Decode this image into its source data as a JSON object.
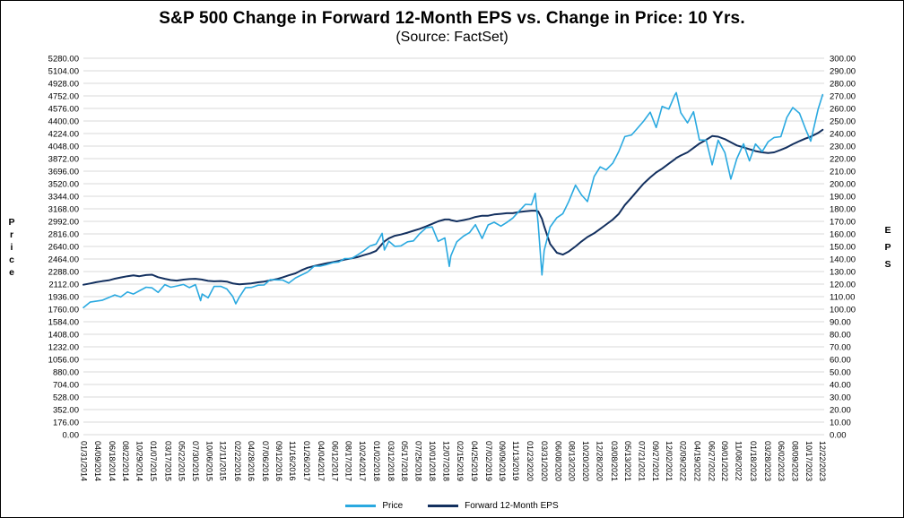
{
  "chart_data": {
    "type": "line",
    "title": "S&P 500 Change in Forward 12-Month EPS vs. Change in Price: 10 Yrs.",
    "subtitle": "(Source: FactSet)",
    "grid": "horizontal",
    "legend_position": "bottom",
    "x_domain": [
      2014.08,
      2024.0
    ],
    "y_left": {
      "title": "Price",
      "min": 0,
      "max": 5280,
      "step": 176,
      "tick_format": "0.00"
    },
    "y_right": {
      "title": "EPS",
      "min": 0,
      "max": 300,
      "step": 10,
      "tick_format": "0.00"
    },
    "series": [
      {
        "name": "Price",
        "color": "#2aa9e0",
        "axis": "left"
      },
      {
        "name": "Forward 12-Month EPS",
        "color": "#13305f",
        "axis": "right"
      }
    ],
    "x_labels": [
      "01/31/2014",
      "04/09/2014",
      "06/18/2014",
      "08/22/2014",
      "10/29/2014",
      "01/07/2015",
      "03/17/2015",
      "05/22/2015",
      "07/30/2015",
      "10/06/2015",
      "12/11/2015",
      "02/22/2016",
      "04/28/2016",
      "07/06/2016",
      "09/12/2016",
      "11/16/2016",
      "01/26/2017",
      "04/04/2017",
      "06/12/2017",
      "08/17/2017",
      "10/24/2017",
      "01/02/2018",
      "03/12/2018",
      "05/17/2018",
      "07/25/2018",
      "10/01/2018",
      "12/07/2018",
      "02/15/2019",
      "04/25/2019",
      "07/02/2019",
      "09/09/2019",
      "11/13/2019",
      "01/23/2020",
      "03/31/2020",
      "06/08/2020",
      "08/13/2020",
      "10/20/2020",
      "12/28/2020",
      "03/08/2021",
      "05/13/2021",
      "07/21/2021",
      "09/27/2021",
      "12/02/2021",
      "02/09/2022",
      "04/19/2022",
      "06/27/2022",
      "09/01/2022",
      "11/08/2022",
      "01/18/2023",
      "03/28/2023",
      "06/02/2023",
      "08/09/2023",
      "10/17/2023",
      "12/22/2023"
    ],
    "points_format": [
      "decimal_year",
      "price",
      "forward_12m_eps"
    ],
    "points": [
      [
        2014.08,
        1783,
        119.5
      ],
      [
        2014.17,
        1859,
        120.5
      ],
      [
        2014.25,
        1872,
        121.5
      ],
      [
        2014.33,
        1884,
        122.3
      ],
      [
        2014.42,
        1924,
        123.0
      ],
      [
        2014.5,
        1960,
        124.3
      ],
      [
        2014.58,
        1931,
        125.3
      ],
      [
        2014.67,
        2003,
        126.3
      ],
      [
        2014.75,
        1972,
        127.0
      ],
      [
        2014.83,
        2018,
        126.3
      ],
      [
        2014.92,
        2068,
        127.2
      ],
      [
        2015.0,
        2059,
        127.5
      ],
      [
        2015.08,
        1995,
        125.5
      ],
      [
        2015.17,
        2105,
        124.2
      ],
      [
        2015.25,
        2068,
        123.2
      ],
      [
        2015.33,
        2086,
        122.8
      ],
      [
        2015.42,
        2107,
        123.6
      ],
      [
        2015.5,
        2063,
        124.0
      ],
      [
        2015.58,
        2104,
        124.2
      ],
      [
        2015.65,
        1880,
        123.8
      ],
      [
        2015.67,
        1972,
        123.6
      ],
      [
        2015.75,
        1920,
        122.6
      ],
      [
        2015.83,
        2079,
        122.2
      ],
      [
        2015.92,
        2080,
        122.4
      ],
      [
        2016.0,
        2044,
        122.0
      ],
      [
        2016.08,
        1940,
        120.6
      ],
      [
        2016.12,
        1835,
        120.2
      ],
      [
        2016.17,
        1932,
        119.8
      ],
      [
        2016.25,
        2060,
        120.2
      ],
      [
        2016.33,
        2065,
        120.6
      ],
      [
        2016.42,
        2097,
        121.4
      ],
      [
        2016.5,
        2099,
        122.0
      ],
      [
        2016.58,
        2174,
        123.0
      ],
      [
        2016.67,
        2171,
        124.0
      ],
      [
        2016.75,
        2168,
        125.4
      ],
      [
        2016.83,
        2126,
        127.0
      ],
      [
        2016.92,
        2199,
        128.6
      ],
      [
        2017.0,
        2239,
        131.0
      ],
      [
        2017.08,
        2279,
        133.0
      ],
      [
        2017.17,
        2364,
        134.4
      ],
      [
        2017.25,
        2363,
        135.5
      ],
      [
        2017.33,
        2384,
        136.5
      ],
      [
        2017.42,
        2412,
        137.5
      ],
      [
        2017.5,
        2423,
        138.5
      ],
      [
        2017.58,
        2470,
        139.5
      ],
      [
        2017.67,
        2472,
        140.5
      ],
      [
        2017.75,
        2519,
        141.5
      ],
      [
        2017.83,
        2575,
        143.0
      ],
      [
        2017.92,
        2648,
        144.5
      ],
      [
        2018.0,
        2674,
        146.5
      ],
      [
        2018.08,
        2824,
        152.0
      ],
      [
        2018.11,
        2590,
        154.0
      ],
      [
        2018.17,
        2714,
        156.5
      ],
      [
        2018.25,
        2641,
        158.5
      ],
      [
        2018.33,
        2648,
        159.5
      ],
      [
        2018.42,
        2705,
        161.0
      ],
      [
        2018.5,
        2718,
        162.5
      ],
      [
        2018.58,
        2816,
        164.0
      ],
      [
        2018.67,
        2902,
        166.0
      ],
      [
        2018.75,
        2914,
        168.0
      ],
      [
        2018.83,
        2712,
        170.0
      ],
      [
        2018.92,
        2760,
        171.5
      ],
      [
        2018.98,
        2360,
        171.5
      ],
      [
        2019.0,
        2507,
        171.0
      ],
      [
        2019.08,
        2704,
        170.0
      ],
      [
        2019.17,
        2785,
        171.0
      ],
      [
        2019.25,
        2834,
        172.0
      ],
      [
        2019.33,
        2946,
        173.5
      ],
      [
        2019.42,
        2752,
        174.5
      ],
      [
        2019.5,
        2942,
        174.5
      ],
      [
        2019.58,
        2980,
        175.5
      ],
      [
        2019.67,
        2926,
        176.0
      ],
      [
        2019.75,
        2977,
        176.5
      ],
      [
        2019.83,
        3038,
        176.5
      ],
      [
        2019.92,
        3141,
        177.5
      ],
      [
        2020.0,
        3231,
        178.0
      ],
      [
        2020.08,
        3226,
        178.5
      ],
      [
        2020.13,
        3386,
        178.5
      ],
      [
        2020.17,
        2954,
        178.0
      ],
      [
        2020.22,
        2240,
        172.0
      ],
      [
        2020.25,
        2585,
        166.0
      ],
      [
        2020.33,
        2912,
        152.0
      ],
      [
        2020.42,
        3044,
        145.0
      ],
      [
        2020.5,
        3100,
        143.5
      ],
      [
        2020.58,
        3271,
        146.0
      ],
      [
        2020.67,
        3500,
        150.0
      ],
      [
        2020.75,
        3363,
        154.0
      ],
      [
        2020.83,
        3270,
        157.5
      ],
      [
        2020.92,
        3622,
        160.5
      ],
      [
        2021.0,
        3756,
        164.0
      ],
      [
        2021.08,
        3714,
        167.5
      ],
      [
        2021.17,
        3811,
        171.5
      ],
      [
        2021.25,
        3973,
        176.0
      ],
      [
        2021.33,
        4181,
        183.0
      ],
      [
        2021.42,
        4204,
        189.0
      ],
      [
        2021.5,
        4298,
        194.5
      ],
      [
        2021.58,
        4395,
        200.0
      ],
      [
        2021.67,
        4523,
        205.0
      ],
      [
        2021.75,
        4308,
        209.0
      ],
      [
        2021.83,
        4605,
        212.0
      ],
      [
        2021.92,
        4567,
        216.0
      ],
      [
        2022.0,
        4766,
        219.5
      ],
      [
        2022.02,
        4797,
        220.5
      ],
      [
        2022.08,
        4516,
        222.5
      ],
      [
        2022.17,
        4374,
        225.0
      ],
      [
        2022.25,
        4530,
        228.5
      ],
      [
        2022.33,
        4132,
        232.0
      ],
      [
        2022.42,
        4132,
        235.0
      ],
      [
        2022.5,
        3785,
        238.0
      ],
      [
        2022.58,
        4130,
        237.5
      ],
      [
        2022.67,
        3955,
        235.5
      ],
      [
        2022.75,
        3586,
        233.0
      ],
      [
        2022.83,
        3872,
        230.5
      ],
      [
        2022.92,
        4080,
        229.0
      ],
      [
        2023.0,
        3840,
        227.5
      ],
      [
        2023.08,
        4077,
        226.0
      ],
      [
        2023.17,
        3970,
        225.0
      ],
      [
        2023.25,
        4109,
        224.5
      ],
      [
        2023.33,
        4169,
        225.0
      ],
      [
        2023.42,
        4180,
        227.0
      ],
      [
        2023.5,
        4450,
        229.0
      ],
      [
        2023.58,
        4589,
        231.5
      ],
      [
        2023.67,
        4508,
        234.0
      ],
      [
        2023.75,
        4288,
        236.0
      ],
      [
        2023.82,
        4117,
        237.5
      ],
      [
        2023.92,
        4568,
        240.5
      ],
      [
        2023.98,
        4770,
        243.0
      ]
    ]
  }
}
